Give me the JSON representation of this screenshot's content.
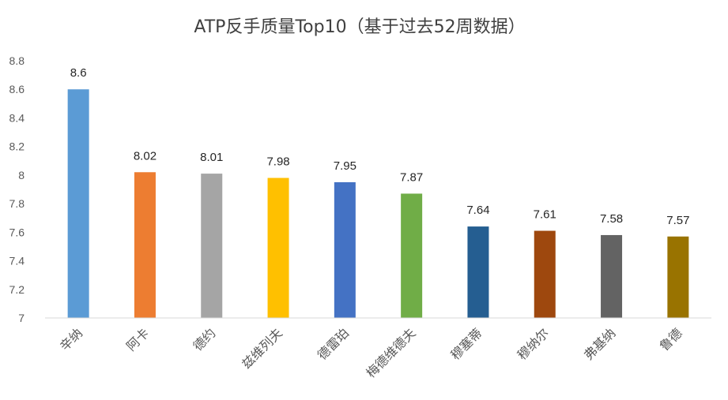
{
  "chart_data": {
    "type": "bar",
    "title": "ATP反手质量Top10（基于过去52周数据）",
    "xlabel": "",
    "ylabel": "",
    "categories": [
      "辛纳",
      "阿卡",
      "德约",
      "兹维列夫",
      "德雷珀",
      "梅德维德夫",
      "穆塞蒂",
      "穆纳尔",
      "弗基纳",
      "鲁德"
    ],
    "values": [
      8.6,
      8.02,
      8.01,
      7.98,
      7.95,
      7.87,
      7.64,
      7.61,
      7.58,
      7.57
    ],
    "value_labels": [
      "8.6",
      "8.02",
      "8.01",
      "7.98",
      "7.95",
      "7.87",
      "7.64",
      "7.61",
      "7.58",
      "7.57"
    ],
    "colors": [
      "#5B9BD5",
      "#ED7D31",
      "#A5A5A5",
      "#FFC000",
      "#4472C4",
      "#70AD47",
      "#255E91",
      "#9E480E",
      "#636363",
      "#997300"
    ],
    "ylim": [
      7,
      8.8
    ],
    "yticks": [
      7,
      7.2,
      7.4,
      7.6,
      7.8,
      8,
      8.2,
      8.4,
      8.6,
      8.8
    ],
    "ytick_labels": [
      "7",
      "7.2",
      "7.4",
      "7.6",
      "7.8",
      "8",
      "8.2",
      "8.4",
      "8.6",
      "8.8"
    ],
    "grid": false,
    "legend": "none"
  }
}
